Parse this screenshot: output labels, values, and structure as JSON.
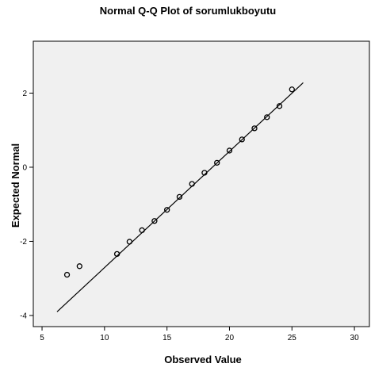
{
  "chart_data": {
    "type": "scatter",
    "title": "Normal Q-Q Plot of sorumlukboyutu",
    "xlabel": "Observed Value",
    "ylabel": "Expected Normal",
    "xlim": [
      4.3,
      31.2
    ],
    "ylim": [
      -4.3,
      3.4
    ],
    "x_ticks": [
      5,
      10,
      15,
      20,
      25,
      30
    ],
    "y_ticks": [
      -4,
      -2,
      0,
      2
    ],
    "grid": false,
    "legend": "none",
    "colors": {
      "background": "#ffffff",
      "plot_area": "#f0f0f0",
      "marker": "#000000",
      "line": "#000000"
    },
    "points": {
      "x": [
        7,
        8,
        11,
        12,
        13,
        14,
        15,
        16,
        17,
        18,
        19,
        20,
        21,
        22,
        23,
        24,
        25
      ],
      "y": [
        -2.9,
        -2.67,
        -2.34,
        -2.01,
        -1.7,
        -1.45,
        -1.15,
        -0.8,
        -0.45,
        -0.15,
        0.12,
        0.45,
        0.75,
        1.05,
        1.35,
        1.65,
        2.1
      ]
    },
    "reference_line": {
      "x": [
        6.2,
        25.9
      ],
      "y": [
        -3.9,
        2.28
      ]
    }
  }
}
